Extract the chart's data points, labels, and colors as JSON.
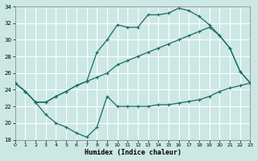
{
  "xlabel": "Humidex (Indice chaleur)",
  "bg_color": "#cce8e4",
  "grid_color": "#b0d8d4",
  "line_color": "#1a6b6b",
  "xlim": [
    0,
    23
  ],
  "ylim": [
    18,
    34
  ],
  "yticks": [
    18,
    20,
    22,
    24,
    26,
    28,
    30,
    32,
    34
  ],
  "xticks": [
    0,
    1,
    2,
    3,
    4,
    5,
    6,
    7,
    8,
    9,
    10,
    11,
    12,
    13,
    14,
    15,
    16,
    17,
    18,
    19,
    20,
    21,
    22,
    23
  ],
  "line_top_x": [
    0,
    1,
    2,
    3,
    4,
    5,
    6,
    7,
    8,
    9,
    10,
    11,
    12,
    13,
    14,
    15,
    16,
    17,
    18,
    19,
    20,
    21,
    22,
    23
  ],
  "line_top_y": [
    24.8,
    23.8,
    22.5,
    22.5,
    23.2,
    23.8,
    24.5,
    25.0,
    28.5,
    30.0,
    31.8,
    31.5,
    31.5,
    33.0,
    33.0,
    33.2,
    33.8,
    33.5,
    32.8,
    31.8,
    30.5,
    29.0,
    26.2,
    24.8
  ],
  "line_mid_x": [
    0,
    1,
    2,
    3,
    4,
    5,
    6,
    7,
    8,
    9,
    10,
    11,
    12,
    13,
    14,
    15,
    16,
    17,
    18,
    19,
    20,
    21,
    22,
    23
  ],
  "line_mid_y": [
    24.8,
    23.8,
    22.5,
    22.5,
    23.2,
    23.8,
    24.5,
    25.0,
    25.5,
    26.0,
    27.0,
    27.5,
    28.0,
    28.5,
    29.0,
    29.5,
    30.0,
    30.5,
    31.0,
    31.5,
    30.5,
    29.0,
    26.2,
    24.8
  ],
  "line_bot_x": [
    0,
    1,
    2,
    3,
    4,
    5,
    6,
    7,
    8,
    9,
    10,
    11,
    12,
    13,
    14,
    15,
    16,
    17,
    18,
    19,
    20,
    21,
    22,
    23
  ],
  "line_bot_y": [
    24.8,
    23.8,
    22.5,
    21.0,
    20.0,
    19.5,
    18.8,
    18.3,
    19.5,
    23.2,
    22.0,
    22.0,
    22.0,
    22.0,
    22.2,
    22.2,
    22.4,
    22.6,
    22.8,
    23.2,
    23.8,
    24.2,
    24.5,
    24.8
  ]
}
